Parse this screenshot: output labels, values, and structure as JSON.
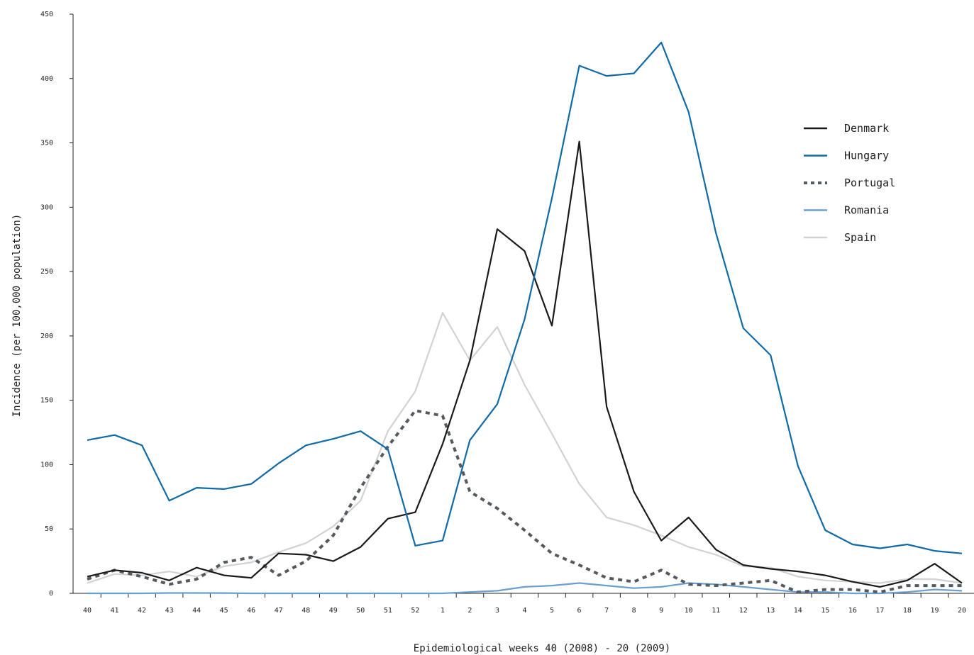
{
  "chart_data": {
    "type": "line",
    "title": "",
    "xlabel": "Epidemiological weeks 40 (2008) - 20 (2009)",
    "ylabel": "Incidence  (per 100,000 population)",
    "ylim": [
      0,
      450
    ],
    "yticks": [
      0,
      50,
      100,
      150,
      200,
      250,
      300,
      350,
      400,
      450
    ],
    "grid": false,
    "legend_position": "right",
    "categories": [
      "40",
      "41",
      "42",
      "43",
      "44",
      "45",
      "46",
      "47",
      "48",
      "49",
      "50",
      "51",
      "52",
      "1",
      "2",
      "3",
      "4",
      "5",
      "6",
      "7",
      "8",
      "9",
      "10",
      "11",
      "12",
      "13",
      "14",
      "15",
      "16",
      "17",
      "18",
      "19",
      "20"
    ],
    "series": [
      {
        "name": "Denmark",
        "color": "#1a1a1a",
        "dash": "solid",
        "values": [
          13,
          18,
          16,
          10,
          20,
          14,
          12,
          31,
          30,
          25,
          36,
          58,
          63,
          116,
          181,
          283,
          266,
          208,
          351,
          145,
          79,
          41,
          59,
          34,
          22,
          19,
          17,
          14,
          9,
          5,
          10,
          23,
          8
        ]
      },
      {
        "name": "Hungary",
        "color": "#0f6aa6",
        "dash": "solid",
        "values": [
          119,
          123,
          115,
          72,
          82,
          81,
          85,
          101,
          115,
          120,
          126,
          112,
          37,
          41,
          119,
          147,
          213,
          307,
          410,
          402,
          404,
          428,
          374,
          280,
          206,
          185,
          99,
          49,
          38,
          35,
          38,
          33,
          31
        ]
      },
      {
        "name": "Portugal",
        "color": "#555a60",
        "dash": "dotted",
        "values": [
          11,
          18,
          13,
          7,
          11,
          24,
          28,
          14,
          25,
          45,
          82,
          114,
          142,
          138,
          79,
          66,
          49,
          31,
          22,
          12,
          9,
          18,
          7,
          6,
          8,
          10,
          1,
          3,
          3,
          1,
          6,
          6,
          6
        ]
      },
      {
        "name": "Romania",
        "color": "#6a9fd0",
        "dash": "solid",
        "values": [
          0,
          0,
          0,
          0.3,
          0.3,
          0.2,
          0,
          0,
          0,
          0,
          0,
          0,
          0,
          0,
          1,
          2,
          5,
          6,
          8,
          6,
          4,
          5,
          8,
          7,
          5,
          3,
          1,
          1,
          0,
          0,
          1,
          3,
          2
        ]
      },
      {
        "name": "Spain",
        "color": "#d2d2d2",
        "dash": "solid",
        "values": [
          8,
          15,
          14,
          17,
          13,
          21,
          24,
          32,
          39,
          52,
          72,
          126,
          157,
          218,
          181,
          207,
          162,
          124,
          85,
          59,
          53,
          45,
          36,
          30,
          21,
          20,
          13,
          10,
          9,
          8,
          11,
          11,
          8
        ]
      }
    ]
  }
}
